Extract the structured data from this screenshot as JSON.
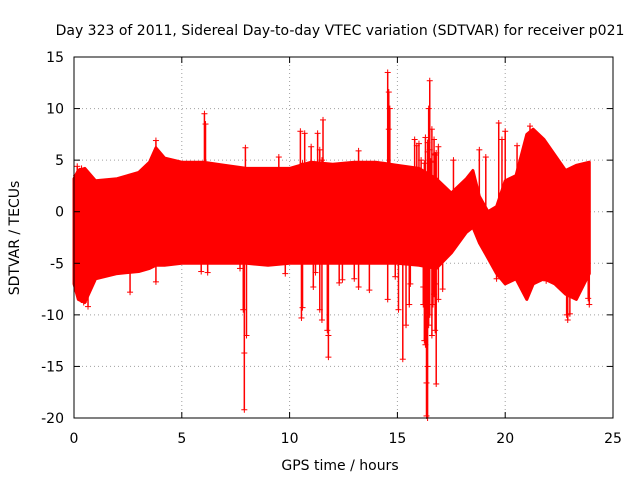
{
  "chart_data": {
    "type": "scatter",
    "title": "Day 323 of 2011, Sidereal Day-to-day VTEC variation (SDTVAR) for receiver p021",
    "xlabel": "GPS time / hours",
    "ylabel": "SDTVAR / TECUs",
    "xlim": [
      0,
      25
    ],
    "ylim": [
      -20,
      15
    ],
    "xticks": [
      0,
      5,
      10,
      15,
      20,
      25
    ],
    "yticks": [
      -20,
      -15,
      -10,
      -5,
      0,
      5,
      10,
      15
    ],
    "x_tick_labels": [
      "0",
      "5",
      "10",
      "15",
      "20",
      "25"
    ],
    "y_tick_labels": [
      "-20",
      "-15",
      "-10",
      "-5",
      "0",
      "5",
      "10",
      "15"
    ],
    "grid": true,
    "marker": "+",
    "color": "#ff0000",
    "series": [
      {
        "name": "SDTVAR p021",
        "envelope": {
          "x": [
            0.0,
            0.2,
            0.5,
            1.0,
            2.0,
            3.0,
            3.5,
            3.8,
            4.2,
            5.0,
            6.0,
            7.0,
            8.0,
            9.0,
            10.0,
            11.0,
            12.0,
            13.0,
            14.0,
            15.0,
            16.0,
            16.8,
            17.5,
            18.2,
            18.5,
            18.8,
            19.2,
            19.6,
            20.0,
            20.5,
            21.0,
            21.3,
            21.8,
            22.3,
            22.8,
            23.3,
            23.9
          ],
          "upper": [
            3.2,
            4.0,
            4.2,
            3.0,
            3.2,
            3.8,
            4.8,
            6.2,
            5.2,
            4.8,
            4.8,
            4.5,
            4.2,
            4.2,
            4.2,
            4.8,
            4.6,
            4.8,
            4.8,
            4.5,
            4.2,
            3.2,
            1.8,
            3.2,
            4.0,
            1.5,
            0.0,
            0.5,
            3.0,
            3.5,
            7.5,
            8.0,
            7.0,
            5.5,
            4.0,
            4.5,
            4.8
          ],
          "lower": [
            -7.0,
            -8.5,
            -8.8,
            -6.5,
            -6.0,
            -5.8,
            -5.5,
            -5.2,
            -5.2,
            -5.0,
            -5.0,
            -5.0,
            -5.0,
            -5.2,
            -5.0,
            -5.0,
            -5.0,
            -5.0,
            -5.0,
            -5.0,
            -5.2,
            -5.5,
            -4.0,
            -2.0,
            -1.5,
            -3.0,
            -4.5,
            -6.0,
            -7.0,
            -6.5,
            -8.5,
            -7.0,
            -6.5,
            -7.0,
            -8.0,
            -8.5,
            -6.0
          ]
        },
        "points": [
          {
            "x": 3.8,
            "y": 6.9
          },
          {
            "x": 6.05,
            "y": 9.5
          },
          {
            "x": 6.1,
            "y": 8.5
          },
          {
            "x": 7.95,
            "y": 6.2
          },
          {
            "x": 7.9,
            "y": -13.7
          },
          {
            "x": 7.9,
            "y": -19.2
          },
          {
            "x": 7.85,
            "y": -9.5
          },
          {
            "x": 8.0,
            "y": -12.0
          },
          {
            "x": 10.5,
            "y": 7.8
          },
          {
            "x": 10.7,
            "y": 7.6
          },
          {
            "x": 11.0,
            "y": 6.3
          },
          {
            "x": 10.6,
            "y": -9.3
          },
          {
            "x": 10.55,
            "y": -10.3
          },
          {
            "x": 11.1,
            "y": -7.3
          },
          {
            "x": 11.3,
            "y": 7.6
          },
          {
            "x": 11.4,
            "y": 6.0
          },
          {
            "x": 11.5,
            "y": 5.0
          },
          {
            "x": 11.35,
            "y": 4.0
          },
          {
            "x": 11.4,
            "y": -9.5
          },
          {
            "x": 11.5,
            "y": -10.5
          },
          {
            "x": 11.55,
            "y": 8.9
          },
          {
            "x": 11.8,
            "y": -12.0
          },
          {
            "x": 11.75,
            "y": -11.5
          },
          {
            "x": 11.8,
            "y": -14.1
          },
          {
            "x": 11.2,
            "y": -5.9
          },
          {
            "x": 12.3,
            "y": -6.9
          },
          {
            "x": 12.45,
            "y": -6.6
          },
          {
            "x": 13.0,
            "y": -6.5
          },
          {
            "x": 13.2,
            "y": 5.9
          },
          {
            "x": 13.2,
            "y": -7.3
          },
          {
            "x": 13.7,
            "y": -7.6
          },
          {
            "x": 14.55,
            "y": 13.5
          },
          {
            "x": 14.6,
            "y": 11.6
          },
          {
            "x": 14.65,
            "y": 10.0
          },
          {
            "x": 14.6,
            "y": 8.0
          },
          {
            "x": 14.55,
            "y": -8.5
          },
          {
            "x": 15.05,
            "y": -9.5
          },
          {
            "x": 15.25,
            "y": -14.3
          },
          {
            "x": 15.4,
            "y": -11.0
          },
          {
            "x": 15.55,
            "y": -9.0
          },
          {
            "x": 15.6,
            "y": -7.0
          },
          {
            "x": 15.8,
            "y": 7.0
          },
          {
            "x": 15.9,
            "y": 6.4
          },
          {
            "x": 16.0,
            "y": 6.6
          },
          {
            "x": 16.1,
            "y": 5.0
          },
          {
            "x": 16.25,
            "y": 4.7
          },
          {
            "x": 16.3,
            "y": 7.2
          },
          {
            "x": 16.4,
            "y": 6.7
          },
          {
            "x": 16.5,
            "y": 12.7
          },
          {
            "x": 16.45,
            "y": 10.0
          },
          {
            "x": 16.4,
            "y": 5.8
          },
          {
            "x": 16.55,
            "y": 4.8
          },
          {
            "x": 16.7,
            "y": 7.0
          },
          {
            "x": 16.75,
            "y": 5.5
          },
          {
            "x": 16.6,
            "y": 8.0
          },
          {
            "x": 16.5,
            "y": 6.0
          },
          {
            "x": 16.55,
            "y": 4.9
          },
          {
            "x": 16.7,
            "y": 5.6
          },
          {
            "x": 16.8,
            "y": 5.7
          },
          {
            "x": 16.9,
            "y": 6.3
          },
          {
            "x": 16.2,
            "y": -7.3
          },
          {
            "x": 16.2,
            "y": -9.0
          },
          {
            "x": 16.25,
            "y": -12.5
          },
          {
            "x": 16.3,
            "y": -12.9
          },
          {
            "x": 16.35,
            "y": -16.6
          },
          {
            "x": 16.35,
            "y": -19.8
          },
          {
            "x": 16.4,
            "y": -20.0
          },
          {
            "x": 16.4,
            "y": -15.0
          },
          {
            "x": 16.45,
            "y": -11.0
          },
          {
            "x": 16.5,
            "y": -10.0
          },
          {
            "x": 16.6,
            "y": -12.0
          },
          {
            "x": 16.65,
            "y": -9.0
          },
          {
            "x": 16.7,
            "y": -8.0
          },
          {
            "x": 16.75,
            "y": -7.0
          },
          {
            "x": 16.8,
            "y": -16.7
          },
          {
            "x": 16.75,
            "y": -11.5
          },
          {
            "x": 16.9,
            "y": -8.5
          },
          {
            "x": 17.1,
            "y": -7.5
          },
          {
            "x": 17.6,
            "y": 5.0
          },
          {
            "x": 18.8,
            "y": 6.0
          },
          {
            "x": 19.1,
            "y": 5.3
          },
          {
            "x": 19.7,
            "y": 8.6
          },
          {
            "x": 19.85,
            "y": 7.0
          },
          {
            "x": 20.0,
            "y": 7.8
          },
          {
            "x": 20.55,
            "y": 6.4
          },
          {
            "x": 21.15,
            "y": 8.3
          },
          {
            "x": 22.9,
            "y": -10.5
          },
          {
            "x": 23.0,
            "y": -9.9
          },
          {
            "x": 22.85,
            "y": -10.0
          },
          {
            "x": 2.6,
            "y": -7.8
          },
          {
            "x": 3.8,
            "y": -6.8
          },
          {
            "x": 0.45,
            "y": -8.8
          },
          {
            "x": 0.65,
            "y": -9.2
          },
          {
            "x": 0.3,
            "y": -8.0
          },
          {
            "x": 0.1,
            "y": 3.5
          },
          {
            "x": 0.15,
            "y": 4.4
          },
          {
            "x": 0.35,
            "y": 4.2
          },
          {
            "x": 5.9,
            "y": -5.8
          },
          {
            "x": 6.2,
            "y": -5.9
          },
          {
            "x": 7.7,
            "y": -5.5
          },
          {
            "x": 9.5,
            "y": 5.3
          },
          {
            "x": 9.8,
            "y": -6.0
          },
          {
            "x": 10.6,
            "y": 4.7
          },
          {
            "x": 14.9,
            "y": -6.3
          },
          {
            "x": 19.6,
            "y": -6.5
          },
          {
            "x": 21.9,
            "y": -6.7
          },
          {
            "x": 23.9,
            "y": -9.0
          },
          {
            "x": 23.85,
            "y": -8.4
          }
        ]
      }
    ]
  }
}
